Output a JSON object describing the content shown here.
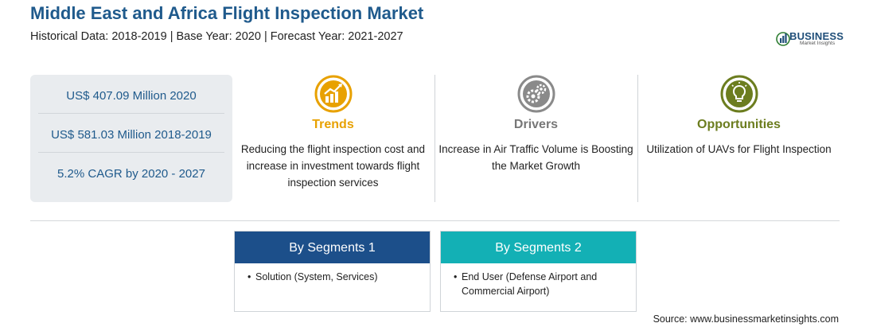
{
  "header": {
    "title": "Middle East and Africa Flight Inspection Market",
    "subtitle": "Historical Data: 2018-2019 | Base Year: 2020 | Forecast Year: 2021-2027"
  },
  "logo": {
    "name": "BUSINESS",
    "tagline": "Market Insights",
    "icon": "globe-bars-icon"
  },
  "stats": [
    "US$ 407.09 Million 2020",
    "US$ 581.03 Million 2018-2019",
    "5.2% CAGR by 2020 - 2027"
  ],
  "columns": [
    {
      "icon": "trend-chart-icon",
      "heading": "Trends",
      "text": "Reducing the flight inspection cost and increase in investment towards flight inspection services"
    },
    {
      "icon": "gears-icon",
      "heading": "Drivers",
      "text": "Increase in Air Traffic Volume is Boosting the Market Growth"
    },
    {
      "icon": "lightbulb-icon",
      "heading": "Opportunities",
      "text": "Utilization of UAVs for Flight Inspection"
    }
  ],
  "segments": [
    {
      "title": "By Segments 1",
      "items": [
        "Solution (System, Services)"
      ]
    },
    {
      "title": "By Segments 2",
      "items": [
        "End User (Defense Airport and Commercial Airport)"
      ]
    }
  ],
  "source": "Source: www.businessmarketinsights.com",
  "colors": {
    "title": "#1f5a8c",
    "trends": "#e8a100",
    "drivers": "#777777",
    "opportunities": "#6c7d1f",
    "segment1": "#1c4f8a",
    "segment2": "#13b0b5"
  }
}
